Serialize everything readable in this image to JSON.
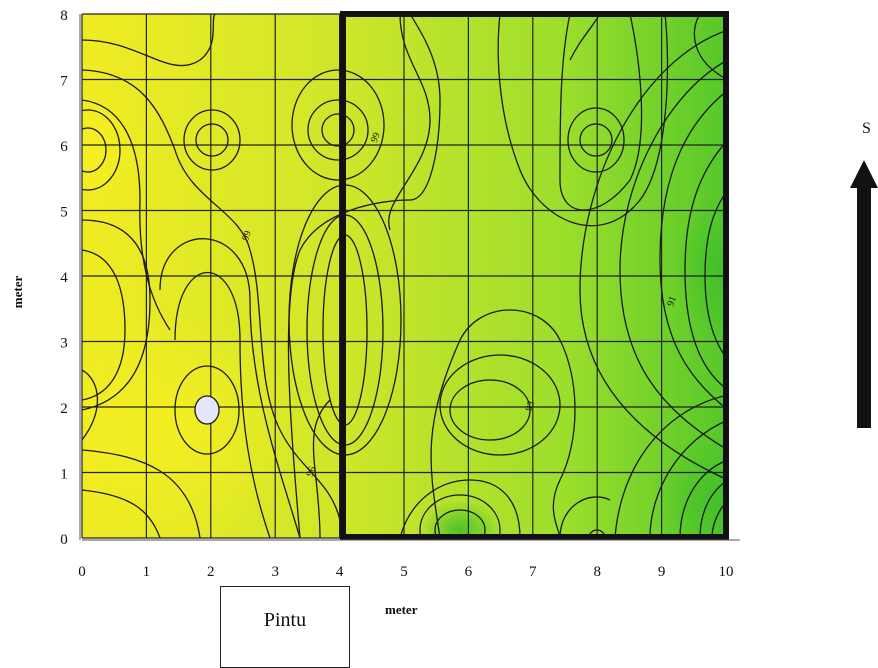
{
  "chart_data": {
    "type": "contour",
    "xlabel": "meter",
    "ylabel": "meter",
    "xlim": [
      0,
      10
    ],
    "ylim": [
      0,
      8
    ],
    "x_ticks": [
      "0",
      "1",
      "2",
      "3",
      "4",
      "5",
      "6",
      "7",
      "8",
      "9",
      "10"
    ],
    "y_ticks": [
      "0",
      "1",
      "2",
      "3",
      "4",
      "5",
      "6",
      "7",
      "8"
    ],
    "grid": true,
    "colormap": [
      "#f3ee22",
      "#cde62a",
      "#9fe02b",
      "#5ccc2a"
    ],
    "contour_labels": [
      {
        "text": "99",
        "x": 4.6,
        "y": 6.1
      },
      {
        "text": "99",
        "x": 2.6,
        "y": 4.6
      },
      {
        "text": "96",
        "x": 3.6,
        "y": 1.0
      },
      {
        "text": "91",
        "x": 9.2,
        "y": 3.6
      },
      {
        "text": "93",
        "x": 7.0,
        "y": 2.0
      }
    ],
    "highlight_region": {
      "x": [
        4,
        10
      ],
      "y": [
        0,
        8
      ]
    },
    "low_point": {
      "x": 2,
      "y": 2
    }
  },
  "annotations": {
    "door_label": "Pintu",
    "compass_letter": "S"
  }
}
